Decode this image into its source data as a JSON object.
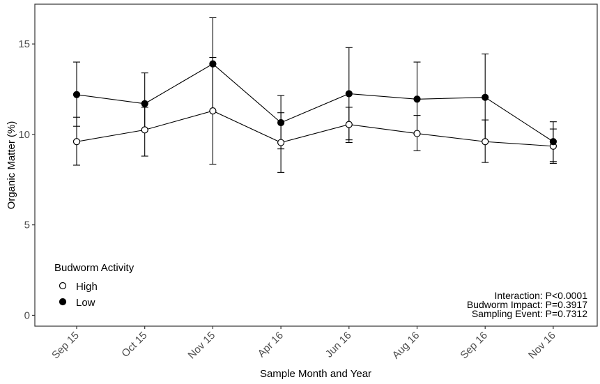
{
  "chart_data": {
    "type": "line",
    "categories": [
      "Sep 15",
      "Oct 15",
      "Nov 15",
      "Apr 16",
      "Jun 16",
      "Aug 16",
      "Sep 16",
      "Nov 16"
    ],
    "series": [
      {
        "name": "High",
        "marker": "open-circle",
        "values": [
          9.6,
          10.25,
          11.3,
          9.55,
          10.55,
          10.05,
          9.6,
          9.35
        ],
        "err_low": [
          8.3,
          8.8,
          8.35,
          7.9,
          9.7,
          9.1,
          8.45,
          8.4
        ],
        "err_high": [
          10.95,
          11.5,
          14.25,
          11.2,
          11.5,
          11.05,
          10.8,
          10.3
        ]
      },
      {
        "name": "Low",
        "marker": "filled-circle",
        "values": [
          12.2,
          11.7,
          13.9,
          10.65,
          12.25,
          11.95,
          12.05,
          9.6
        ],
        "err_low": [
          10.45,
          10.25,
          11.3,
          9.2,
          9.55,
          10.0,
          9.6,
          8.5
        ],
        "err_high": [
          14.0,
          13.4,
          16.45,
          12.15,
          14.8,
          14.0,
          14.45,
          10.7
        ]
      }
    ],
    "title": "",
    "xlabel": "Sample Month and Year",
    "ylabel": "Organic Matter (%)",
    "ylim": [
      -0.6,
      17.2
    ],
    "yticks": [
      0,
      5,
      10,
      15
    ],
    "grid": false,
    "legend": {
      "title": "Budworm Activity",
      "placement": "bottom-left",
      "entries": [
        "High",
        "Low"
      ]
    },
    "annotations": [
      "Interaction: P<0.0001",
      "Budworm Impact: P=0.3917",
      "Sampling Event: P=0.7312"
    ],
    "colors": {
      "line": "#000000",
      "open_fill": "#ffffff",
      "filled_fill": "#000000"
    }
  }
}
